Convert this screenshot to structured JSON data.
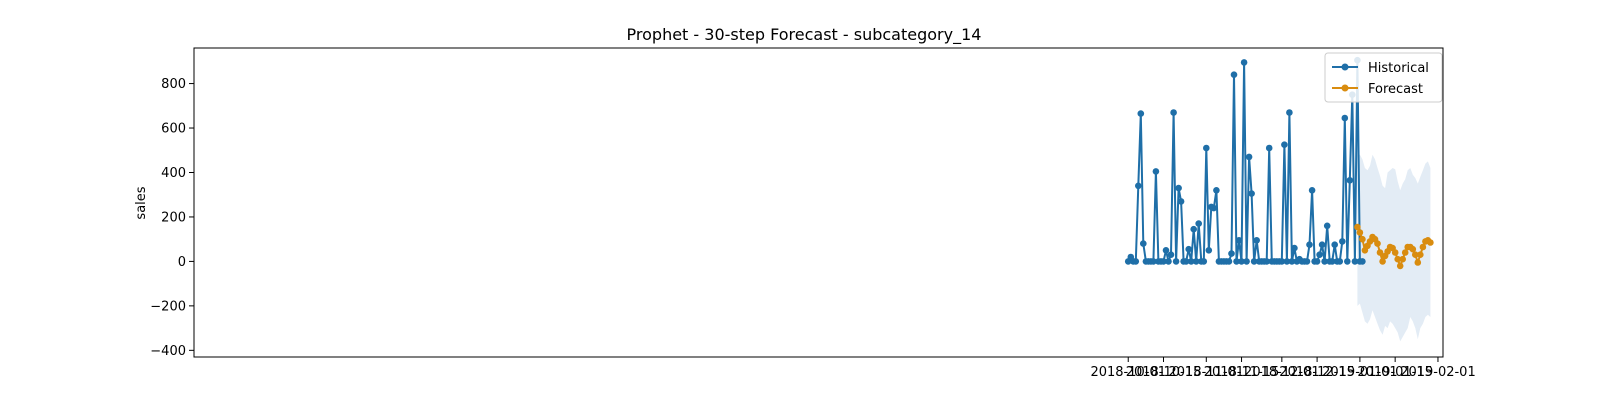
{
  "chart_data": {
    "type": "line",
    "title": "Prophet - 30-step Forecast - subcategory_14",
    "xlabel": "",
    "ylabel": "sales",
    "xlim": [
      "2017-09-25",
      "2019-02-03"
    ],
    "ylim": [
      -430,
      960
    ],
    "x_ticks": [
      "2018-10-01",
      "2018-10-15",
      "2018-11-01",
      "2018-11-15",
      "2018-12-01",
      "2018-12-15",
      "2019-01-01",
      "2019-01-15",
      "2019-02-01"
    ],
    "y_ticks": [
      -400,
      -200,
      0,
      200,
      400,
      600,
      800
    ],
    "grid": false,
    "legend_position": "top-right",
    "colors": {
      "historical": "#1f6fa8",
      "forecast": "#d98c0f",
      "interval": "#e3ecf5"
    },
    "series": [
      {
        "name": "Historical",
        "x_start": "2018-10-01",
        "x_step_days": 1,
        "values": [
          0,
          20,
          0,
          0,
          340,
          665,
          80,
          0,
          0,
          0,
          0,
          405,
          0,
          0,
          0,
          50,
          0,
          30,
          670,
          0,
          330,
          270,
          0,
          0,
          55,
          0,
          145,
          0,
          170,
          0,
          0,
          510,
          50,
          245,
          240,
          320,
          0,
          0,
          0,
          0,
          0,
          35,
          840,
          0,
          95,
          0,
          895,
          0,
          470,
          305,
          0,
          95,
          0,
          0,
          0,
          0,
          510,
          0,
          0,
          0,
          0,
          0,
          525,
          0,
          670,
          0,
          60,
          0,
          10,
          0,
          0,
          0,
          75,
          320,
          0,
          0,
          30,
          75,
          0,
          160,
          0,
          0,
          75,
          0,
          0,
          90,
          645,
          0,
          365,
          750,
          0,
          905,
          0,
          0
        ]
      },
      {
        "name": "Forecast",
        "x_start": "2018-12-31",
        "x_step_days": 1,
        "values": [
          155,
          130,
          100,
          50,
          70,
          90,
          110,
          100,
          80,
          40,
          0,
          25,
          45,
          65,
          60,
          40,
          10,
          -20,
          10,
          40,
          65,
          65,
          55,
          30,
          -5,
          30,
          65,
          90,
          95,
          85
        ]
      }
    ],
    "interval": {
      "upper": [
        480,
        480,
        460,
        420,
        410,
        430,
        480,
        460,
        420,
        385,
        340,
        330,
        400,
        410,
        420,
        415,
        360,
        320,
        350,
        370,
        410,
        420,
        390,
        375,
        350,
        380,
        410,
        440,
        450,
        420
      ],
      "lower": [
        -200,
        -190,
        -230,
        -270,
        -280,
        -260,
        -220,
        -250,
        -280,
        -310,
        -330,
        -290,
        -300,
        -270,
        -280,
        -300,
        -320,
        -360,
        -340,
        -320,
        -300,
        -250,
        -270,
        -300,
        -350,
        -300,
        -280,
        -250,
        -240,
        -250
      ]
    }
  }
}
